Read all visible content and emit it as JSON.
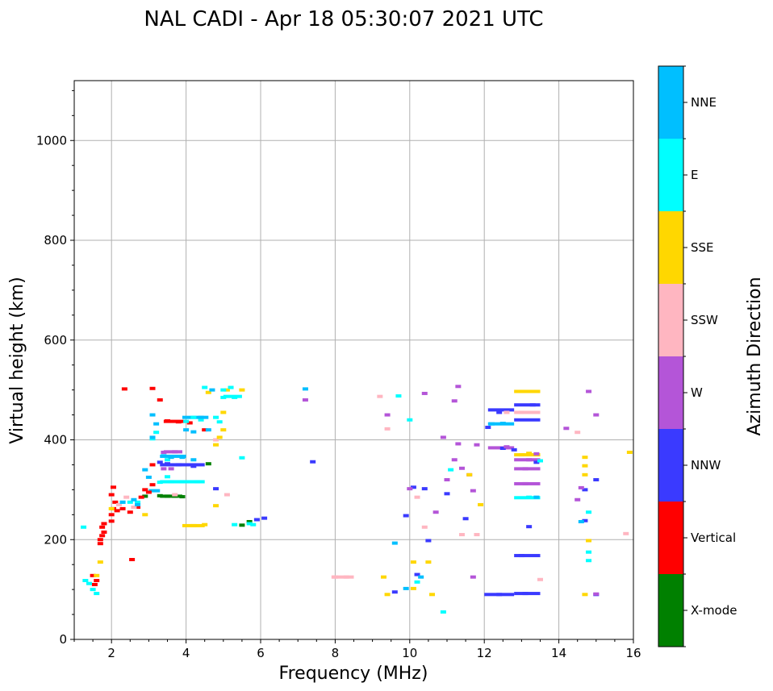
{
  "chart_data": {
    "type": "scatter",
    "title": "NAL CADI - Apr 18 05:30:07 2021 UTC",
    "xlabel": "Frequency (MHz)",
    "ylabel": "Virtual height (km)",
    "xlim": [
      1,
      16
    ],
    "ylim": [
      0,
      1120
    ],
    "grid": true,
    "x_ticks": [
      2,
      4,
      6,
      8,
      10,
      12,
      14,
      16
    ],
    "y_ticks": [
      0,
      200,
      400,
      600,
      800,
      1000
    ],
    "x_minor_step": 0.5,
    "y_minor_step": 50,
    "colorbar": {
      "label": "Azimuth Direction",
      "categories": [
        "X-mode",
        "Vertical",
        "NNW",
        "W",
        "SSW",
        "SSE",
        "E",
        "NNE"
      ],
      "colors": {
        "X-mode": "#008000",
        "Vertical": "#ff0000",
        "NNW": "#3a3aff",
        "W": "#b455d8",
        "SSW": "#ffb6c1",
        "SSE": "#ffd700",
        "E": "#00ffff",
        "NNE": "#00bfff"
      }
    },
    "series": [
      {
        "name": "X-mode",
        "points": [
          [
            3.3,
            288
          ],
          [
            3.5,
            287
          ],
          [
            3.7,
            287
          ],
          [
            3.9,
            286
          ],
          [
            2.9,
            287
          ],
          [
            4.6,
            352
          ],
          [
            5.5,
            229
          ],
          [
            5.7,
            236
          ]
        ]
      },
      {
        "name": "Vertical",
        "points": [
          [
            1.7,
            192
          ],
          [
            1.7,
            200
          ],
          [
            1.75,
            208
          ],
          [
            1.8,
            215
          ],
          [
            1.75,
            225
          ],
          [
            1.8,
            232
          ],
          [
            2.0,
            237
          ],
          [
            2.0,
            250
          ],
          [
            2.05,
            262
          ],
          [
            2.1,
            275
          ],
          [
            2.0,
            290
          ],
          [
            2.05,
            305
          ],
          [
            2.15,
            258
          ],
          [
            2.3,
            262
          ],
          [
            2.5,
            255
          ],
          [
            2.7,
            265
          ],
          [
            2.8,
            285
          ],
          [
            3.0,
            295
          ],
          [
            3.1,
            350
          ],
          [
            3.1,
            310
          ],
          [
            3.5,
            438
          ],
          [
            3.8,
            436
          ],
          [
            4.1,
            434
          ],
          [
            3.1,
            503
          ],
          [
            3.3,
            480
          ],
          [
            1.55,
            110
          ],
          [
            1.6,
            118
          ],
          [
            1.5,
            128
          ],
          [
            2.55,
            160
          ],
          [
            2.35,
            502
          ],
          [
            4.5,
            420
          ],
          [
            2.9,
            300
          ]
        ]
      },
      {
        "name": "NNW",
        "points": [
          [
            3.3,
            355
          ],
          [
            3.5,
            352
          ],
          [
            3.8,
            350
          ],
          [
            4.2,
            347
          ],
          [
            4.8,
            302
          ],
          [
            5.9,
            240
          ],
          [
            6.1,
            243
          ],
          [
            7.4,
            356
          ],
          [
            10.1,
            305
          ],
          [
            10.4,
            302
          ],
          [
            11.0,
            292
          ],
          [
            11.5,
            242
          ],
          [
            12.5,
            383
          ],
          [
            12.8,
            380
          ],
          [
            13.3,
            470
          ],
          [
            13.1,
            92
          ],
          [
            12.4,
            90
          ],
          [
            13.0,
            168
          ],
          [
            13.2,
            226
          ],
          [
            14.7,
            300
          ],
          [
            14.7,
            238
          ],
          [
            15.0,
            90
          ],
          [
            15.0,
            320
          ],
          [
            9.6,
            95
          ],
          [
            9.9,
            248
          ],
          [
            10.2,
            130
          ],
          [
            10.5,
            198
          ],
          [
            12.1,
            425
          ],
          [
            12.4,
            455
          ],
          [
            13.4,
            355
          ]
        ]
      },
      {
        "name": "W",
        "points": [
          [
            3.4,
            375
          ],
          [
            3.7,
            376
          ],
          [
            3.4,
            342
          ],
          [
            3.6,
            342
          ],
          [
            10.0,
            302
          ],
          [
            10.4,
            493
          ],
          [
            11.3,
            507
          ],
          [
            11.2,
            478
          ],
          [
            11.3,
            392
          ],
          [
            11.2,
            360
          ],
          [
            11.4,
            343
          ],
          [
            10.9,
            405
          ],
          [
            11.8,
            390
          ],
          [
            12.6,
            386
          ],
          [
            13.1,
            312
          ],
          [
            13.1,
            342
          ],
          [
            13.2,
            360
          ],
          [
            13.4,
            372
          ],
          [
            14.2,
            423
          ],
          [
            14.5,
            280
          ],
          [
            14.6,
            304
          ],
          [
            14.8,
            497
          ],
          [
            15.0,
            450
          ],
          [
            15.0,
            91
          ],
          [
            10.7,
            255
          ],
          [
            11.0,
            320
          ],
          [
            11.6,
            330
          ],
          [
            11.7,
            298
          ],
          [
            11.7,
            125
          ],
          [
            9.4,
            450
          ],
          [
            7.2,
            480
          ]
        ]
      },
      {
        "name": "SSW",
        "points": [
          [
            8.3,
            125
          ],
          [
            8.0,
            125
          ],
          [
            9.2,
            487
          ],
          [
            12.6,
            455
          ],
          [
            13.0,
            455
          ],
          [
            14.5,
            415
          ],
          [
            15.8,
            212
          ],
          [
            11.4,
            210
          ],
          [
            11.8,
            210
          ],
          [
            10.2,
            285
          ],
          [
            10.4,
            225
          ],
          [
            13.5,
            120
          ],
          [
            9.4,
            422
          ],
          [
            4.8,
            400
          ],
          [
            3.7,
            290
          ],
          [
            2.6,
            265
          ],
          [
            2.4,
            285
          ],
          [
            2.2,
            270
          ],
          [
            5.1,
            290
          ]
        ]
      },
      {
        "name": "SSE",
        "points": [
          [
            4.2,
            228
          ],
          [
            4.5,
            230
          ],
          [
            4.8,
            268
          ],
          [
            4.8,
            390
          ],
          [
            4.9,
            405
          ],
          [
            5.0,
            420
          ],
          [
            5.5,
            500
          ],
          [
            5.1,
            500
          ],
          [
            1.7,
            155
          ],
          [
            1.6,
            128
          ],
          [
            9.3,
            125
          ],
          [
            9.4,
            90
          ],
          [
            10.1,
            155
          ],
          [
            10.1,
            102
          ],
          [
            10.5,
            155
          ],
          [
            10.6,
            90
          ],
          [
            11.6,
            330
          ],
          [
            11.9,
            270
          ],
          [
            13.0,
            370
          ],
          [
            13.0,
            497
          ],
          [
            13.2,
            373
          ],
          [
            14.7,
            348
          ],
          [
            14.7,
            330
          ],
          [
            14.7,
            365
          ],
          [
            14.7,
            90
          ],
          [
            14.8,
            198
          ],
          [
            15.9,
            375
          ],
          [
            4.6,
            495
          ],
          [
            2.0,
            262
          ],
          [
            2.9,
            250
          ],
          [
            5.0,
            455
          ]
        ]
      },
      {
        "name": "E",
        "points": [
          [
            1.3,
            118
          ],
          [
            1.4,
            112
          ],
          [
            1.5,
            100
          ],
          [
            1.6,
            92
          ],
          [
            1.25,
            225
          ],
          [
            2.3,
            275
          ],
          [
            2.5,
            275
          ],
          [
            2.7,
            275
          ],
          [
            3.3,
            315
          ],
          [
            3.6,
            316
          ],
          [
            3.9,
            316
          ],
          [
            4.3,
            316
          ],
          [
            3.5,
            326
          ],
          [
            4.4,
            440
          ],
          [
            4.2,
            445
          ],
          [
            4.0,
            437
          ],
          [
            4.8,
            445
          ],
          [
            5.0,
            485
          ],
          [
            5.3,
            485
          ],
          [
            5.2,
            505
          ],
          [
            5.3,
            230
          ],
          [
            5.7,
            232
          ],
          [
            5.8,
            230
          ],
          [
            4.9,
            436
          ],
          [
            5.5,
            364
          ],
          [
            9.7,
            488
          ],
          [
            10.0,
            440
          ],
          [
            10.2,
            115
          ],
          [
            11.1,
            340
          ],
          [
            13.2,
            285
          ],
          [
            13.5,
            358
          ],
          [
            14.8,
            158
          ],
          [
            14.8,
            175
          ],
          [
            14.8,
            255
          ],
          [
            10.9,
            55
          ],
          [
            3.1,
            402
          ],
          [
            3.2,
            415
          ],
          [
            3.5,
            360
          ],
          [
            4.5,
            505
          ],
          [
            5.0,
            500
          ]
        ]
      },
      {
        "name": "NNE",
        "points": [
          [
            3.1,
            450
          ],
          [
            3.2,
            432
          ],
          [
            3.1,
            405
          ],
          [
            3.4,
            368
          ],
          [
            3.6,
            365
          ],
          [
            3.9,
            365
          ],
          [
            4.2,
            360
          ],
          [
            4.4,
            445
          ],
          [
            4.6,
            420
          ],
          [
            2.9,
            340
          ],
          [
            3.0,
            325
          ],
          [
            7.2,
            502
          ],
          [
            9.6,
            193
          ],
          [
            9.9,
            102
          ],
          [
            10.3,
            125
          ],
          [
            12.2,
            432
          ],
          [
            12.5,
            433
          ],
          [
            13.4,
            285
          ],
          [
            14.6,
            236
          ],
          [
            2.7,
            270
          ],
          [
            2.3,
            275
          ],
          [
            2.6,
            280
          ],
          [
            4.2,
            416
          ],
          [
            4.0,
            420
          ],
          [
            4.7,
            500
          ]
        ]
      }
    ],
    "long_traces": [
      {
        "name": "NNE",
        "x_from": 3.3,
        "x_to": 4.0,
        "y": 367
      },
      {
        "name": "NNE",
        "x_from": 3.9,
        "x_to": 4.6,
        "y": 445
      },
      {
        "name": "E",
        "x_from": 3.3,
        "x_to": 4.5,
        "y": 316
      },
      {
        "name": "NNW",
        "x_from": 3.3,
        "x_to": 4.5,
        "y": 350
      },
      {
        "name": "Vertical",
        "x_from": 3.4,
        "x_to": 4.0,
        "y": 437
      },
      {
        "name": "W",
        "x_from": 3.4,
        "x_to": 3.9,
        "y": 376
      },
      {
        "name": "X-mode",
        "x_from": 3.3,
        "x_to": 3.9,
        "y": 287
      },
      {
        "name": "SSE",
        "x_from": 3.9,
        "x_to": 4.5,
        "y": 228
      },
      {
        "name": "NNW",
        "x_from": 12.0,
        "x_to": 12.8,
        "y": 90
      },
      {
        "name": "NNW",
        "x_from": 12.8,
        "x_to": 13.5,
        "y": 92
      },
      {
        "name": "NNE",
        "x_from": 12.1,
        "x_to": 12.8,
        "y": 432
      },
      {
        "name": "W",
        "x_from": 12.1,
        "x_to": 12.8,
        "y": 384
      },
      {
        "name": "NNW",
        "x_from": 12.1,
        "x_to": 12.8,
        "y": 460
      },
      {
        "name": "SSE",
        "x_from": 12.8,
        "x_to": 13.5,
        "y": 497
      },
      {
        "name": "NNW",
        "x_from": 12.8,
        "x_to": 13.5,
        "y": 470
      },
      {
        "name": "SSE",
        "x_from": 12.8,
        "x_to": 13.5,
        "y": 370
      },
      {
        "name": "W",
        "x_from": 12.8,
        "x_to": 13.5,
        "y": 360
      },
      {
        "name": "W",
        "x_from": 12.8,
        "x_to": 13.5,
        "y": 342
      },
      {
        "name": "W",
        "x_from": 12.8,
        "x_to": 13.5,
        "y": 312
      },
      {
        "name": "E",
        "x_from": 12.8,
        "x_to": 13.5,
        "y": 284
      },
      {
        "name": "NNW",
        "x_from": 12.8,
        "x_to": 13.5,
        "y": 168
      },
      {
        "name": "SSW",
        "x_from": 12.8,
        "x_to": 13.5,
        "y": 455
      },
      {
        "name": "NNW",
        "x_from": 12.8,
        "x_to": 13.5,
        "y": 440
      },
      {
        "name": "SSW",
        "x_from": 7.9,
        "x_to": 8.5,
        "y": 125
      },
      {
        "name": "NNE",
        "x_from": 3.0,
        "x_to": 3.3,
        "y": 298
      },
      {
        "name": "E",
        "x_from": 5.0,
        "x_to": 5.5,
        "y": 487
      }
    ]
  }
}
